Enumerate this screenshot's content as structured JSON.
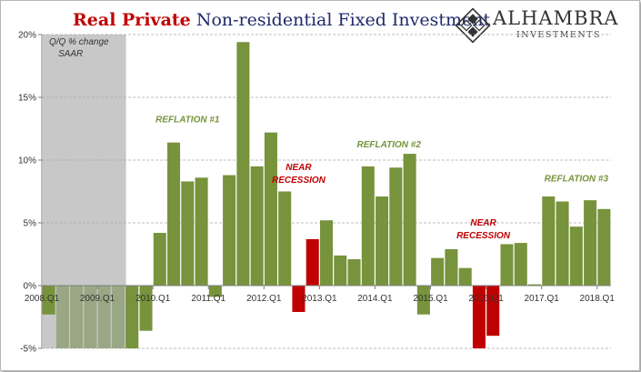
{
  "title_part1": "Real Private",
  "title_part2": "Non-residential Fixed Investment",
  "logo": {
    "name": "ALHAMBRA",
    "subtitle": "INVESTMENTS"
  },
  "chart_data": {
    "type": "bar",
    "title": "Real Private Non-residential Fixed Investment",
    "ylabel": "Q/Q % change SAAR",
    "ylabel_lines": [
      "Q/Q % change",
      "SAAR"
    ],
    "ylim": [
      -5,
      20
    ],
    "yticks": [
      -5,
      0,
      5,
      10,
      15,
      20
    ],
    "ytick_labels": [
      "-5%",
      "0%",
      "5%",
      "10%",
      "15%",
      "20%"
    ],
    "xtick_labels": [
      {
        "label": "2008.Q1",
        "index": 0
      },
      {
        "label": "2009.Q1",
        "index": 4
      },
      {
        "label": "2010.Q1",
        "index": 8
      },
      {
        "label": "2011.Q1",
        "index": 12
      },
      {
        "label": "2012.Q1",
        "index": 16
      },
      {
        "label": "2013.Q1",
        "index": 20
      },
      {
        "label": "2014.Q1",
        "index": 24
      },
      {
        "label": "2015.Q1",
        "index": 28
      },
      {
        "label": "2016.Q1",
        "index": 32
      },
      {
        "label": "2017.Q1",
        "index": 36
      },
      {
        "label": "2018.Q1",
        "index": 40
      }
    ],
    "recession_shading": {
      "start_index": 0,
      "end_index": 6
    },
    "colors": {
      "normal": "#77933c",
      "recession": "#9aa784",
      "near": "#c00000",
      "shade": "#c8c8c8"
    },
    "bars": [
      {
        "q": "2008Q1",
        "v": -2.3,
        "c": "normal"
      },
      {
        "q": "2008Q2",
        "v": -5.0,
        "c": "recession"
      },
      {
        "q": "2008Q3",
        "v": -5.0,
        "c": "recession"
      },
      {
        "q": "2008Q4",
        "v": -5.0,
        "c": "recession"
      },
      {
        "q": "2009Q1",
        "v": -5.0,
        "c": "recession"
      },
      {
        "q": "2009Q2",
        "v": -5.0,
        "c": "recession"
      },
      {
        "q": "2009Q3",
        "v": -5.0,
        "c": "normal"
      },
      {
        "q": "2009Q4",
        "v": -3.6,
        "c": "normal"
      },
      {
        "q": "2010Q1",
        "v": 4.2,
        "c": "normal"
      },
      {
        "q": "2010Q2",
        "v": 11.4,
        "c": "normal"
      },
      {
        "q": "2010Q3",
        "v": 8.3,
        "c": "normal"
      },
      {
        "q": "2010Q4",
        "v": 8.6,
        "c": "normal"
      },
      {
        "q": "2011Q1",
        "v": -0.9,
        "c": "normal"
      },
      {
        "q": "2011Q2",
        "v": 8.8,
        "c": "normal"
      },
      {
        "q": "2011Q3",
        "v": 19.4,
        "c": "normal"
      },
      {
        "q": "2011Q4",
        "v": 9.5,
        "c": "normal"
      },
      {
        "q": "2012Q1",
        "v": 12.2,
        "c": "normal"
      },
      {
        "q": "2012Q2",
        "v": 7.5,
        "c": "normal"
      },
      {
        "q": "2012Q3",
        "v": -2.1,
        "c": "near"
      },
      {
        "q": "2012Q4",
        "v": 3.7,
        "c": "near"
      },
      {
        "q": "2013Q1",
        "v": 5.2,
        "c": "normal"
      },
      {
        "q": "2013Q2",
        "v": 2.4,
        "c": "normal"
      },
      {
        "q": "2013Q3",
        "v": 2.1,
        "c": "normal"
      },
      {
        "q": "2013Q4",
        "v": 9.5,
        "c": "normal"
      },
      {
        "q": "2014Q1",
        "v": 7.1,
        "c": "normal"
      },
      {
        "q": "2014Q2",
        "v": 9.4,
        "c": "normal"
      },
      {
        "q": "2014Q3",
        "v": 10.5,
        "c": "normal"
      },
      {
        "q": "2014Q4",
        "v": -2.3,
        "c": "normal"
      },
      {
        "q": "2015Q1",
        "v": 2.2,
        "c": "normal"
      },
      {
        "q": "2015Q2",
        "v": 2.9,
        "c": "normal"
      },
      {
        "q": "2015Q3",
        "v": 1.4,
        "c": "normal"
      },
      {
        "q": "2015Q4",
        "v": -5.0,
        "c": "near"
      },
      {
        "q": "2016Q1",
        "v": -4.0,
        "c": "near"
      },
      {
        "q": "2016Q2",
        "v": 3.3,
        "c": "normal"
      },
      {
        "q": "2016Q3",
        "v": 3.4,
        "c": "normal"
      },
      {
        "q": "2016Q4",
        "v": 0.1,
        "c": "normal"
      },
      {
        "q": "2017Q1",
        "v": 7.1,
        "c": "normal"
      },
      {
        "q": "2017Q2",
        "v": 6.7,
        "c": "normal"
      },
      {
        "q": "2017Q3",
        "v": 4.7,
        "c": "normal"
      },
      {
        "q": "2017Q4",
        "v": 6.8,
        "c": "normal"
      },
      {
        "q": "2018Q1",
        "v": 6.1,
        "c": "normal"
      }
    ],
    "annotations": [
      {
        "id": "reflation1",
        "lines": [
          "REFLATION #1"
        ],
        "color": "#77933c"
      },
      {
        "id": "reflation2",
        "lines": [
          "REFLATION #2"
        ],
        "color": "#77933c"
      },
      {
        "id": "reflation3",
        "lines": [
          "REFLATION #3"
        ],
        "color": "#77933c"
      },
      {
        "id": "near1",
        "lines": [
          "NEAR",
          "RECESSION"
        ],
        "color": "#c00000"
      },
      {
        "id": "near2",
        "lines": [
          "NEAR",
          "RECESSION"
        ],
        "color": "#c00000"
      }
    ]
  }
}
